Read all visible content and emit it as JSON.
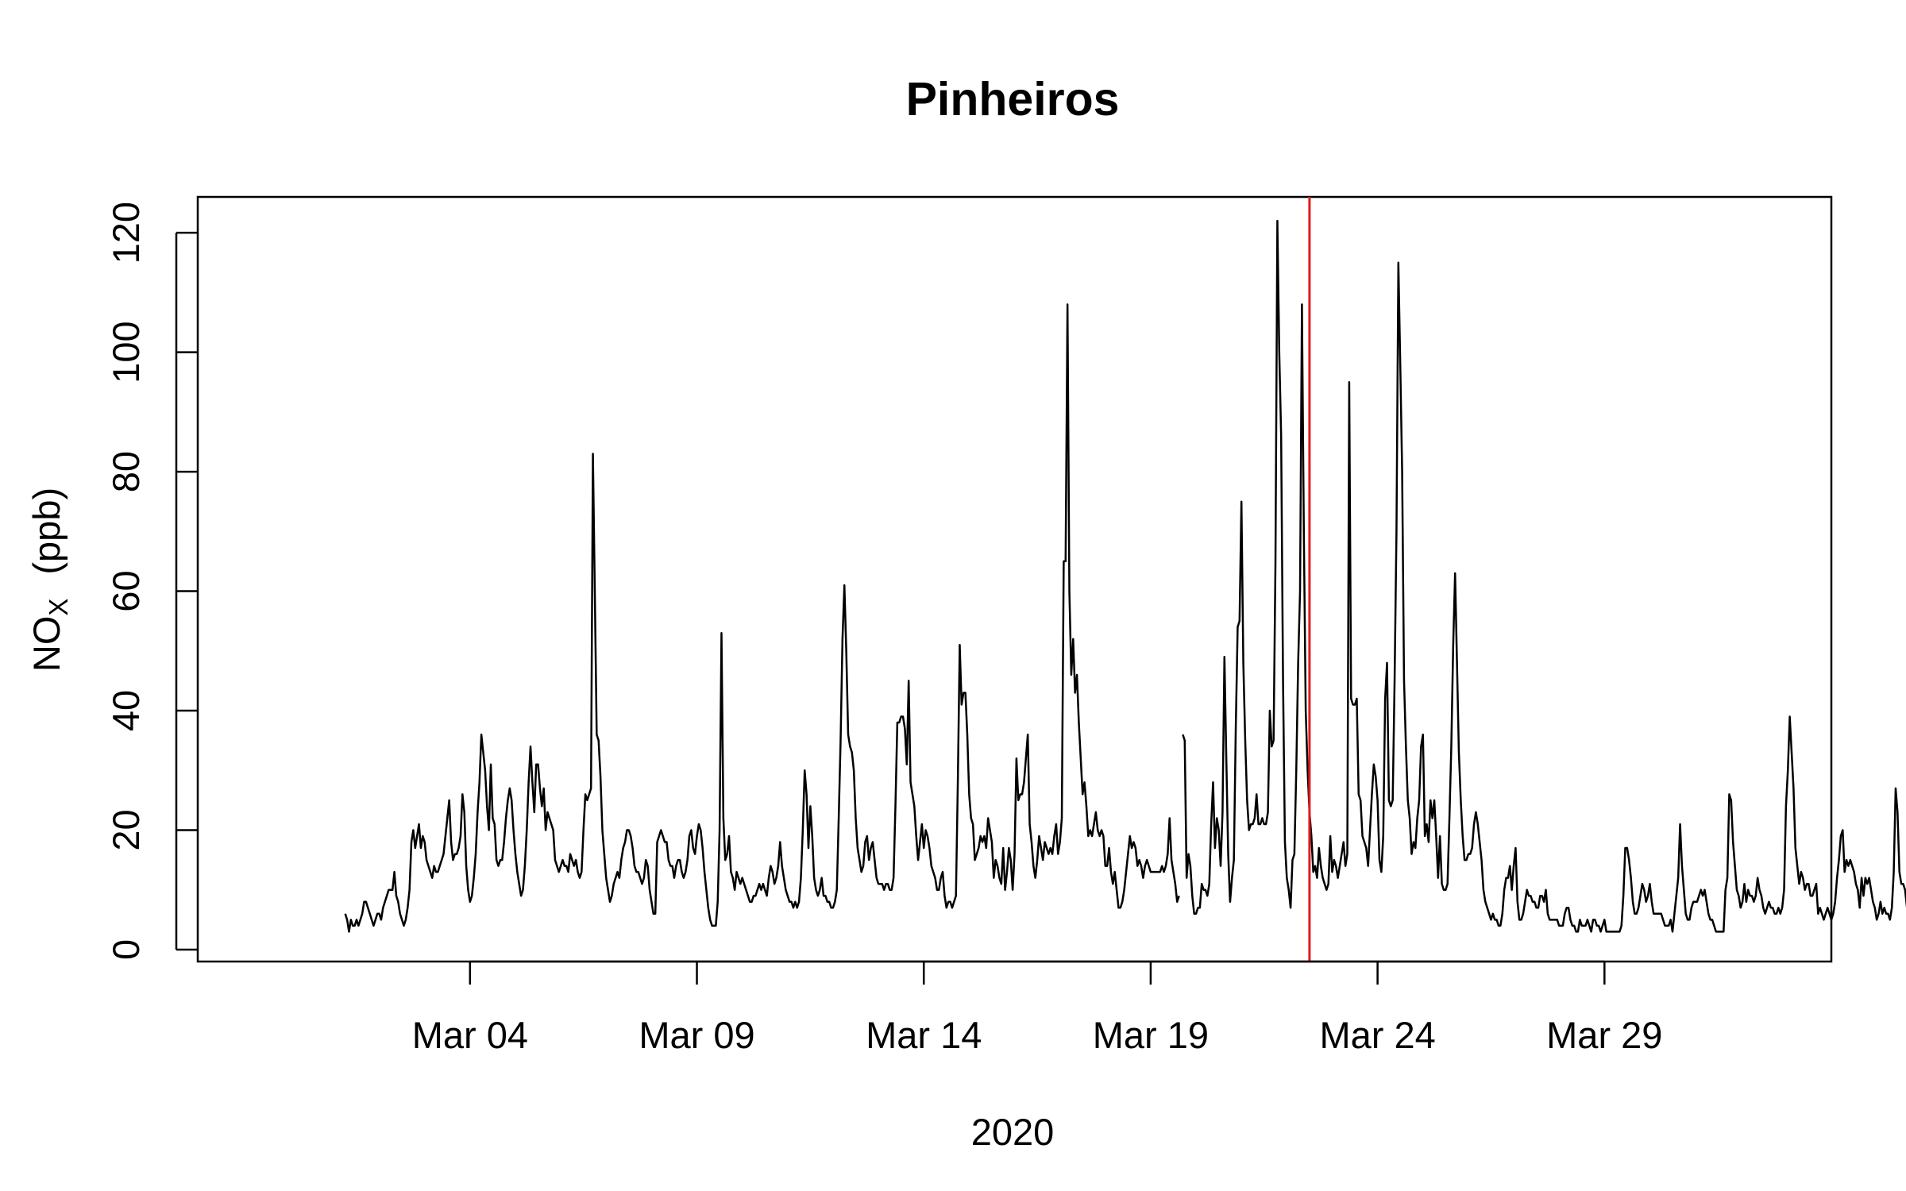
{
  "chart_data": {
    "type": "line",
    "title": "Pinheiros",
    "xlabel": "2020",
    "ylabel": {
      "main": "NO",
      "subscript": "X",
      "unit": "(ppb)"
    },
    "xlim": [
      "2020-02-27",
      "2020-04-03"
    ],
    "ylim": [
      -2,
      126
    ],
    "x_ticks": [
      {
        "date": "2020-03-04",
        "label": "Mar 04"
      },
      {
        "date": "2020-03-09",
        "label": "Mar 09"
      },
      {
        "date": "2020-03-14",
        "label": "Mar 14"
      },
      {
        "date": "2020-03-19",
        "label": "Mar 19"
      },
      {
        "date": "2020-03-24",
        "label": "Mar 24"
      },
      {
        "date": "2020-03-29",
        "label": "Mar 29"
      }
    ],
    "y_ticks": [
      0,
      20,
      40,
      60,
      80,
      100,
      120
    ],
    "grid": false,
    "line_color": "#000000",
    "reference_line": {
      "date": "2020-03-22 12:00",
      "color": "#e41a1c"
    },
    "series": [
      {
        "start": "2020-03-01 06:00",
        "step_hours": 1,
        "values": [
          6,
          5,
          3,
          5,
          4,
          4,
          5,
          4,
          5,
          6,
          8,
          8,
          7,
          6,
          5,
          4,
          5,
          6,
          6,
          5,
          7,
          8,
          9,
          10,
          10,
          10,
          13,
          9,
          8,
          6,
          5,
          4,
          5,
          7,
          10,
          18,
          20,
          17,
          19,
          21,
          17,
          19,
          18,
          15,
          14,
          13,
          12,
          14,
          13,
          13,
          14,
          15,
          16,
          19,
          22,
          25,
          18,
          15,
          16,
          16,
          17,
          19,
          26,
          23,
          14,
          10,
          8,
          9,
          12,
          16,
          23,
          28,
          36,
          33,
          30,
          24,
          20,
          31,
          22,
          21,
          15,
          14,
          15,
          15,
          18,
          22,
          25,
          27,
          25,
          20,
          16,
          13,
          11,
          9,
          10,
          14,
          20,
          28,
          34,
          28,
          23,
          31,
          31,
          27,
          24,
          27,
          20,
          23,
          22,
          21,
          20,
          15,
          14,
          13,
          14,
          15,
          14,
          14,
          13,
          16,
          15,
          14,
          15,
          13,
          12,
          13,
          20,
          26,
          25,
          26,
          27,
          83,
          60,
          36,
          35,
          29,
          20,
          16,
          12,
          10,
          8,
          9,
          11,
          12,
          13,
          12,
          15,
          17,
          18,
          20,
          20,
          19,
          17,
          14,
          13,
          13,
          12,
          11,
          12,
          15,
          14,
          10,
          8,
          6,
          6,
          18,
          19,
          20,
          19,
          18,
          18,
          15,
          14,
          14,
          12,
          14,
          15,
          15,
          13,
          12,
          13,
          15,
          19,
          20,
          17,
          16,
          19,
          21,
          20,
          17,
          13,
          10,
          7,
          5,
          4,
          4,
          4,
          8,
          20,
          53,
          22,
          15,
          16,
          19,
          13,
          12,
          10,
          13,
          12,
          11,
          12,
          11,
          10,
          9,
          8,
          8,
          9,
          9,
          10,
          11,
          10,
          11,
          10,
          9,
          12,
          14,
          13,
          11,
          12,
          14,
          18,
          14,
          12,
          10,
          9,
          8,
          8,
          7,
          8,
          7,
          8,
          12,
          20,
          30,
          26,
          17,
          24,
          19,
          12,
          10,
          9,
          10,
          12,
          9,
          9,
          8,
          8,
          7,
          7,
          8,
          10,
          22,
          35,
          52,
          61,
          50,
          36,
          34,
          33,
          30,
          22,
          17,
          15,
          13,
          14,
          18,
          19,
          15,
          17,
          18,
          15,
          12,
          11,
          11,
          11,
          10,
          11,
          11,
          10,
          10,
          12,
          24,
          38,
          38,
          39,
          39,
          37,
          31,
          45,
          28,
          26,
          24,
          19,
          15,
          18,
          21,
          17,
          20,
          19,
          17,
          14,
          13,
          12,
          10,
          10,
          12,
          13,
          9,
          7,
          8,
          8,
          7,
          8,
          9,
          28,
          51,
          41,
          43,
          43,
          36,
          26,
          22,
          21,
          15,
          16,
          17,
          19,
          18,
          19,
          17,
          22,
          20,
          18,
          12,
          15,
          14,
          12,
          11,
          17,
          10,
          13,
          17,
          15,
          10,
          16,
          32,
          25,
          26,
          26,
          28,
          32,
          36,
          21,
          18,
          14,
          12,
          15,
          19,
          17,
          15,
          18,
          17,
          16,
          17,
          16,
          19,
          21,
          16,
          18,
          22,
          65,
          65,
          108,
          60,
          46,
          52,
          43,
          46,
          38,
          32,
          26,
          28,
          24,
          19,
          20,
          19,
          21,
          23,
          20,
          19,
          20,
          19,
          14,
          14,
          17,
          13,
          11,
          13,
          10,
          7,
          7,
          8,
          10,
          13,
          16,
          19,
          17,
          18,
          17,
          14,
          15,
          14,
          12,
          14,
          15,
          14,
          13,
          13,
          13,
          13,
          13,
          13,
          14,
          13,
          14,
          16,
          22,
          15,
          13,
          11,
          8,
          9,
          null,
          36,
          35,
          12,
          16,
          14,
          9,
          6,
          6,
          7,
          7,
          11,
          10,
          10,
          9,
          11,
          21,
          28,
          17,
          22,
          20,
          14,
          23,
          49,
          32,
          16,
          8,
          12,
          15,
          37,
          54,
          55,
          75,
          48,
          35,
          25,
          20,
          21,
          21,
          22,
          26,
          21,
          21,
          22,
          21,
          21,
          23,
          40,
          34,
          35,
          65,
          122,
          100,
          86,
          45,
          18,
          12,
          10,
          7,
          15,
          16,
          30,
          48,
          60,
          108,
          70,
          40,
          30,
          23,
          19,
          13,
          14,
          12,
          17,
          14,
          12,
          11,
          10,
          11,
          19,
          13,
          15,
          14,
          12,
          14,
          16,
          18,
          14,
          16,
          95,
          42,
          41,
          41,
          42,
          26,
          25,
          19,
          18,
          17,
          14,
          20,
          26,
          31,
          29,
          25,
          15,
          13,
          19,
          42,
          48,
          25,
          24,
          25,
          45,
          70,
          115,
          98,
          80,
          45,
          34,
          25,
          22,
          16,
          18,
          17,
          22,
          25,
          34,
          36,
          19,
          21,
          18,
          25,
          22,
          25,
          19,
          12,
          19,
          11,
          10,
          10,
          11,
          22,
          34,
          51,
          63,
          48,
          33,
          25,
          19,
          15,
          15,
          16,
          16,
          17,
          21,
          23,
          21,
          18,
          15,
          10,
          8,
          7,
          6,
          5,
          6,
          5,
          5,
          4,
          4,
          6,
          10,
          12,
          12,
          14,
          10,
          14,
          17,
          8,
          5,
          5,
          6,
          8,
          10,
          9,
          9,
          8,
          8,
          7,
          7,
          9,
          9,
          8,
          10,
          6,
          5,
          5,
          5,
          5,
          5,
          4,
          4,
          4,
          6,
          7,
          7,
          5,
          4,
          4,
          3,
          3,
          5,
          4,
          4,
          4,
          5,
          4,
          3,
          5,
          5,
          4,
          4,
          3,
          4,
          5,
          3,
          3,
          3,
          3,
          3,
          3,
          3,
          3,
          4,
          9,
          17,
          17,
          15,
          12,
          8,
          6,
          6,
          7,
          9,
          11,
          10,
          8,
          9,
          11,
          8,
          6,
          6,
          6,
          6,
          6,
          5,
          4,
          4,
          4,
          5,
          3,
          6,
          9,
          12,
          21,
          14,
          10,
          6,
          5,
          5,
          7,
          8,
          8,
          8,
          9,
          10,
          9,
          10,
          8,
          6,
          5,
          5,
          4,
          3,
          3,
          3,
          3,
          3,
          10,
          12,
          26,
          25,
          18,
          14,
          10,
          9,
          7,
          8,
          11,
          8,
          10,
          9,
          9,
          8,
          9,
          12,
          10,
          9,
          7,
          6,
          7,
          8,
          7,
          7,
          6,
          6,
          7,
          6,
          7,
          10,
          24,
          30,
          39,
          33,
          27,
          17,
          14,
          11,
          13,
          12,
          10,
          11,
          11,
          9,
          9,
          10,
          11,
          6,
          7,
          6,
          5,
          6,
          7,
          6,
          5,
          6,
          8,
          12,
          15,
          19,
          20,
          13,
          15,
          14,
          15,
          14,
          13,
          11,
          10,
          7,
          12,
          9,
          12,
          11,
          12,
          10,
          8,
          7,
          5,
          6,
          8,
          6,
          7,
          6,
          6,
          5,
          7,
          13,
          27,
          23,
          13,
          11,
          11,
          10,
          7,
          7,
          7,
          6,
          7,
          9,
          9,
          11,
          11,
          10,
          10,
          11,
          12,
          14,
          12,
          13,
          14,
          11,
          11,
          6,
          5,
          4,
          4,
          5,
          6,
          9,
          11,
          11,
          9,
          7,
          5,
          4,
          4,
          6,
          5,
          6,
          8,
          17,
          13,
          9,
          14,
          22,
          18,
          15,
          10,
          6,
          5,
          4,
          6,
          11,
          45,
          27,
          20,
          16,
          20,
          17,
          14,
          16,
          14,
          11,
          10,
          9,
          9,
          8,
          7,
          6,
          7,
          6,
          6,
          11,
          12,
          9,
          5,
          8,
          12,
          12,
          16,
          22,
          29,
          25,
          72,
          60,
          28,
          23,
          25,
          27,
          23,
          19,
          17,
          12,
          11,
          10,
          8,
          7,
          7,
          7,
          8,
          12,
          11,
          19
        ]
      }
    ]
  }
}
